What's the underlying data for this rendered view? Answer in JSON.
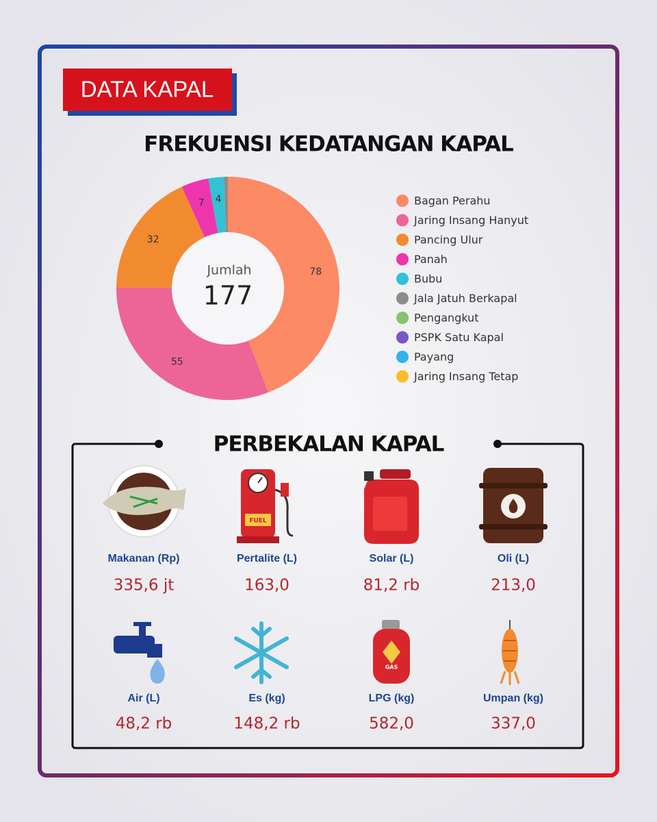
{
  "header": {
    "tag": "DATA KAPAL"
  },
  "chart_data": {
    "type": "donut",
    "title": "FREKUENSI KEDATANGAN KAPAL",
    "center_label": "Jumlah",
    "total": 177,
    "categories": [
      "Bagan Perahu",
      "Jaring Insang Hanyut",
      "Pancing Ulur",
      "Panah",
      "Bubu",
      "Jala Jatuh Berkapal",
      "Pengangkut",
      "PSPK Satu Kapal",
      "Payang",
      "Jaring Insang Tetap"
    ],
    "values": [
      78,
      55,
      32,
      7,
      4,
      1,
      0,
      0,
      0,
      0
    ],
    "colors": [
      "#fb8a65",
      "#ec6595",
      "#f28a30",
      "#ee35ad",
      "#33c2d5",
      "#8c8c8c",
      "#86c46b",
      "#7b57c6",
      "#2fb5ea",
      "#fbbc2a"
    ],
    "legend": "right"
  },
  "provisions": {
    "title": "PERBEKALAN KAPAL",
    "items": [
      {
        "label": "Makanan (Rp)",
        "value": "335,6 jt"
      },
      {
        "label": "Pertalite (L)",
        "value": "163,0"
      },
      {
        "label": "Solar (L)",
        "value": "81,2 rb"
      },
      {
        "label": "Oli (L)",
        "value": "213,0"
      },
      {
        "label": "Air (L)",
        "value": "48,2 rb"
      },
      {
        "label": "Es (kg)",
        "value": "148,2 rb"
      },
      {
        "label": "LPG (kg)",
        "value": "582,0"
      },
      {
        "label": "Umpan (kg)",
        "value": "337,0"
      }
    ]
  }
}
